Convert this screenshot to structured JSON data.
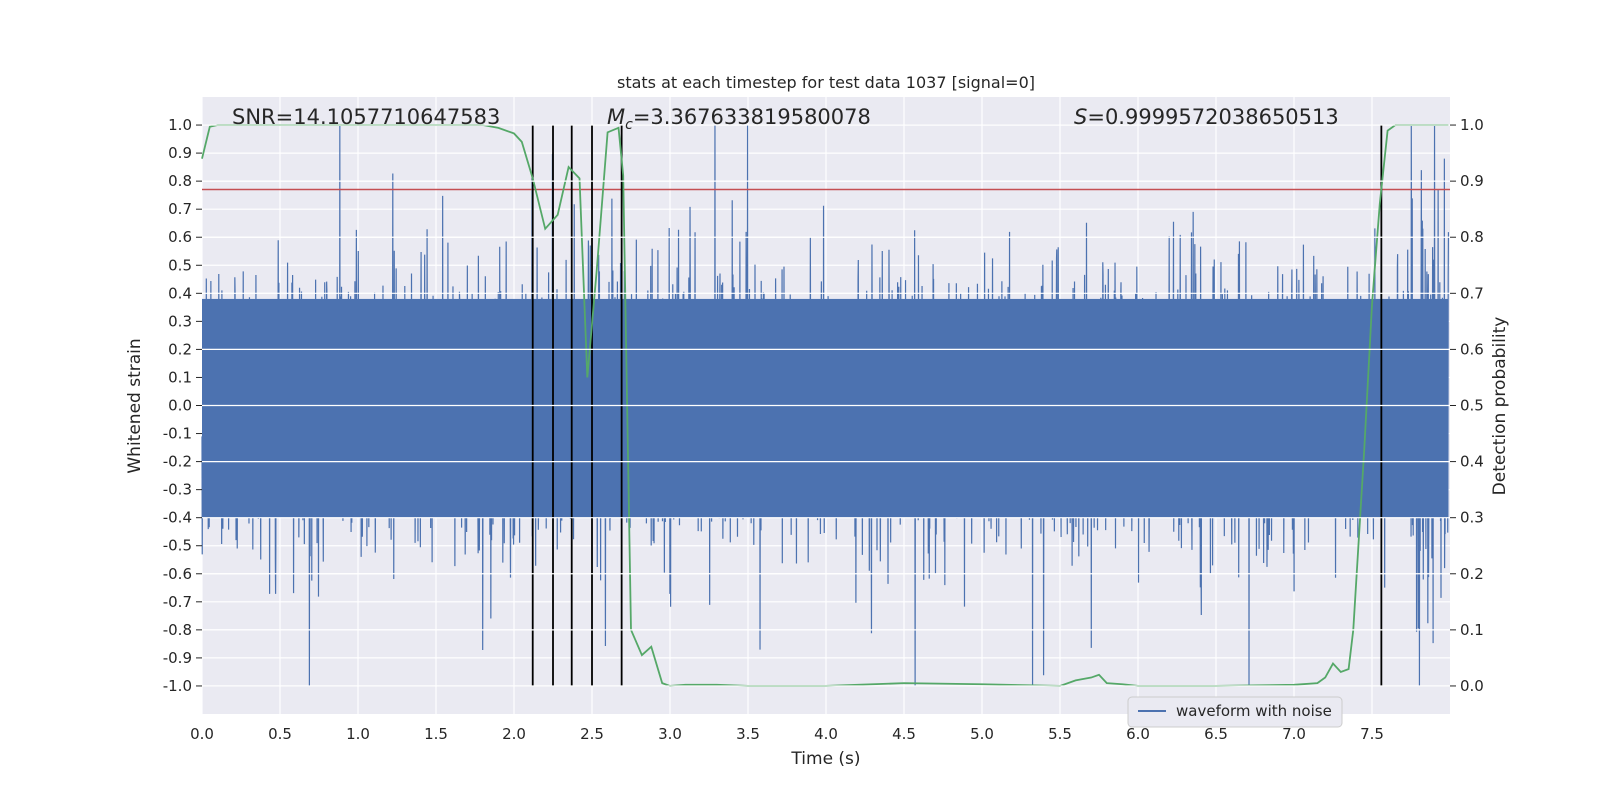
{
  "chart_data": {
    "type": "line",
    "title": "stats at each timestep for test data 1037 [signal=0]",
    "xlabel": "Time (s)",
    "ylabel": "Whitened strain",
    "y2label": "Detection probability",
    "xlim": [
      0.0,
      8.0
    ],
    "ylim": [
      -1.1,
      1.1
    ],
    "y2lim": [
      -0.05,
      1.05
    ],
    "x_ticks": [
      "0.0",
      "0.5",
      "1.0",
      "1.5",
      "2.0",
      "2.5",
      "3.0",
      "3.5",
      "4.0",
      "4.5",
      "5.0",
      "5.5",
      "6.0",
      "6.5",
      "7.0",
      "7.5"
    ],
    "y_ticks": [
      "1.0",
      "0.9",
      "0.8",
      "0.7",
      "0.6",
      "0.5",
      "0.4",
      "0.3",
      "0.2",
      "0.1",
      "0.0",
      "-0.1",
      "-0.2",
      "-0.3",
      "-0.4",
      "-0.5",
      "-0.6",
      "-0.7",
      "-0.8",
      "-0.9",
      "-1.0"
    ],
    "y2_ticks": [
      "1.0",
      "0.9",
      "0.8",
      "0.7",
      "0.6",
      "0.5",
      "0.4",
      "0.3",
      "0.2",
      "0.1",
      "0.0"
    ],
    "annotations": {
      "snr_text": "SNR=14.1057710647583",
      "mc_symbol": "M",
      "mc_subscript": "c",
      "mc_value": "=3.367633819580078",
      "s_symbol": "S",
      "s_value": "=0.9999572038650513"
    },
    "threshold": {
      "value": 0.785,
      "color": "#c44e52"
    },
    "vertical_markers": [
      2.12,
      2.25,
      2.37,
      2.5,
      2.69,
      7.56
    ],
    "series": [
      {
        "name": "waveform with noise",
        "color": "#4c72b0",
        "style": "dense noise, core band approx -0.4 to 0.4, peaks to approx +/-1.0"
      },
      {
        "name": "detection probability",
        "color": "#55a868",
        "axis": "right",
        "x": [
          0.0,
          0.05,
          0.1,
          0.5,
          1.0,
          1.5,
          1.8,
          1.9,
          2.0,
          2.05,
          2.12,
          2.2,
          2.28,
          2.35,
          2.42,
          2.47,
          2.53,
          2.6,
          2.67,
          2.7,
          2.75,
          2.82,
          2.88,
          2.95,
          3.0,
          3.1,
          3.3,
          3.5,
          4.0,
          4.5,
          5.0,
          5.5,
          5.6,
          5.7,
          5.75,
          5.8,
          5.9,
          6.0,
          6.5,
          7.0,
          7.15,
          7.2,
          7.25,
          7.3,
          7.35,
          7.38,
          7.45,
          7.5,
          7.55,
          7.6,
          7.65,
          7.75,
          7.99
        ],
        "values": [
          0.94,
          0.997,
          1.0,
          1.0,
          1.0,
          1.0,
          1.0,
          0.995,
          0.985,
          0.97,
          0.905,
          0.815,
          0.84,
          0.925,
          0.905,
          0.55,
          0.74,
          0.987,
          0.995,
          0.91,
          0.1,
          0.055,
          0.07,
          0.005,
          0.0,
          0.002,
          0.002,
          0.0,
          0.0,
          0.005,
          0.003,
          0.0,
          0.01,
          0.015,
          0.02,
          0.005,
          0.003,
          0.0,
          0.0,
          0.002,
          0.005,
          0.015,
          0.04,
          0.025,
          0.03,
          0.1,
          0.42,
          0.68,
          0.86,
          0.99,
          1.0,
          1.0,
          1.0
        ]
      }
    ],
    "legend": {
      "label": "waveform with noise",
      "position": "bottom-right"
    },
    "grid": true
  }
}
